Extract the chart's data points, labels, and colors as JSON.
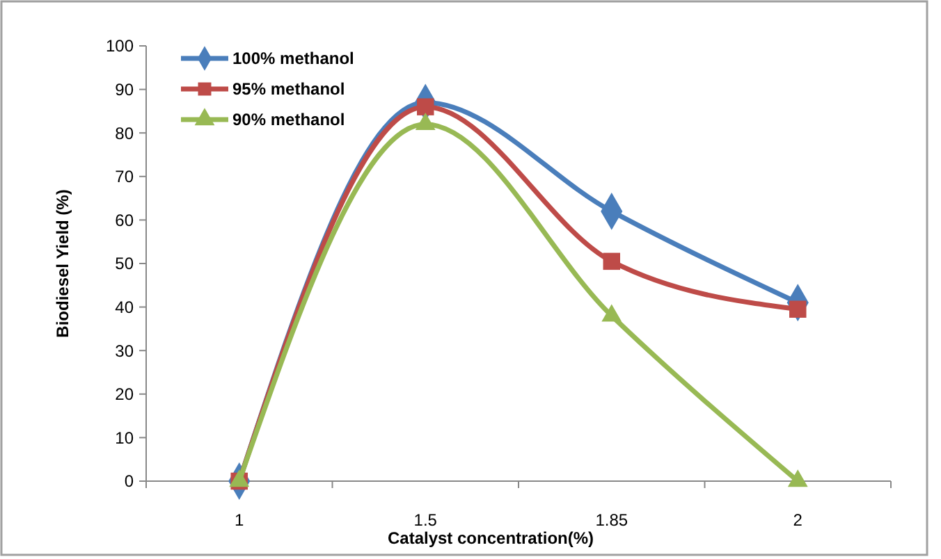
{
  "chart_data": {
    "type": "line",
    "xlabel": "Catalyst concentration(%)",
    "ylabel": "Biodiesel Yield (%)",
    "categories": [
      "1",
      "1.5",
      "1.85",
      "2"
    ],
    "series": [
      {
        "name": "100% methanol",
        "color": "#4a7ebb",
        "marker": "diamond",
        "values": [
          0,
          87,
          62,
          41
        ]
      },
      {
        "name": "95% methanol",
        "color": "#be4b48",
        "marker": "square",
        "values": [
          0,
          86,
          50.5,
          39.5
        ]
      },
      {
        "name": "90% methanol",
        "color": "#98b954",
        "marker": "triangle",
        "values": [
          0,
          82,
          38,
          0
        ]
      }
    ],
    "ylim": [
      0,
      100
    ],
    "yticks": [
      0,
      10,
      20,
      30,
      40,
      50,
      60,
      70,
      80,
      90,
      100
    ],
    "grid": false,
    "legend": "top left"
  }
}
